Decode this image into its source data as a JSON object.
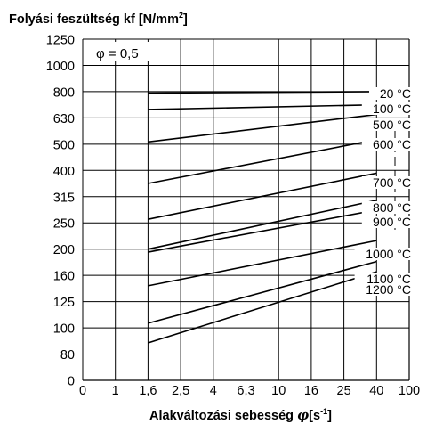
{
  "chart_data": {
    "type": "line",
    "title": {
      "text": "Folyási feszültség kf [N/mm",
      "sup": "2",
      "suffix": "]"
    },
    "xlabel": {
      "text": "Alakváltozási sebesség ",
      "symbol": "φ",
      "unit_open": "[s",
      "sup": "-1",
      "unit_close": "]"
    },
    "annotation": "φ = 0,5",
    "y_ticks": [
      "0",
      "80",
      "100",
      "125",
      "160",
      "200",
      "250",
      "315",
      "400",
      "500",
      "630",
      "800",
      "1000",
      "1250"
    ],
    "x_ticks": [
      "0",
      "1",
      "1,6",
      "2,5",
      "4",
      "6,3",
      "10",
      "16",
      "25",
      "40",
      "100"
    ],
    "x_range": [
      1.6,
      40
    ],
    "series": [
      {
        "name": "20 °C",
        "y_start": 790,
        "y_end": 800
      },
      {
        "name": "100 °C",
        "y_start": 680,
        "y_end": 710
      },
      {
        "name": "500 °C",
        "y_start": 510,
        "y_end": 650
      },
      {
        "name": "600 °C",
        "y_start": 355,
        "y_end": 520
      },
      {
        "name": "700 °C",
        "y_start": 258,
        "y_end": 390
      },
      {
        "name": "800 °C",
        "y_start": 200,
        "y_end": 305
      },
      {
        "name": "900 °C",
        "y_start": 195,
        "y_end": 280
      },
      {
        "name": "1000 °C",
        "y_start": 145,
        "y_end": 215
      },
      {
        "name": "1100 °C",
        "y_start": 104,
        "y_end": 180
      },
      {
        "name": "1200 °C",
        "y_start": 88,
        "y_end": 165
      }
    ],
    "grid": true
  }
}
